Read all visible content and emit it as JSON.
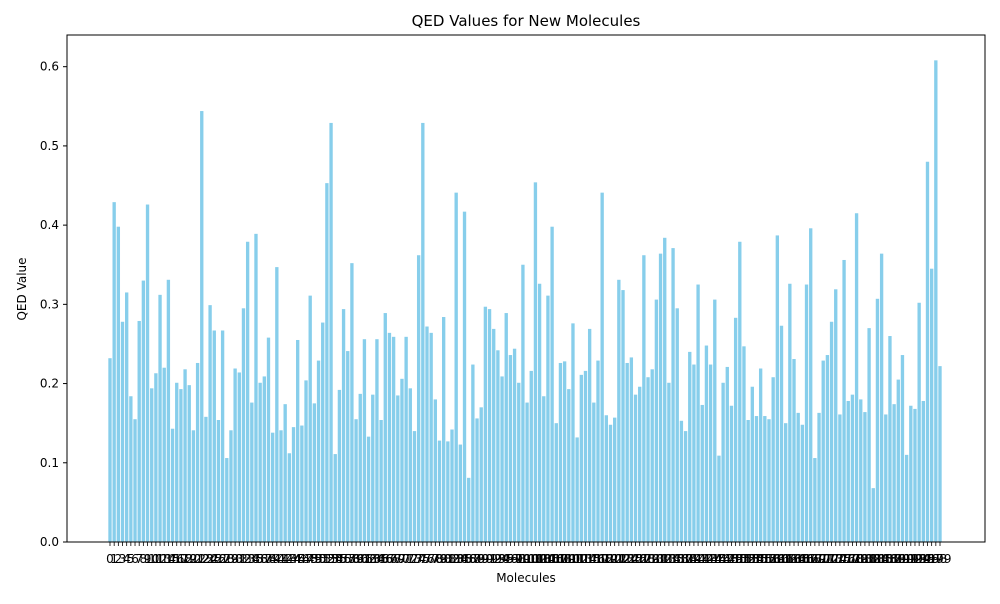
{
  "chart_data": {
    "type": "bar",
    "title": "QED Values for New Molecules",
    "xlabel": "Molecules",
    "ylabel": "QED Value",
    "ylim": [
      0,
      0.64
    ],
    "yticks": [
      0.0,
      0.1,
      0.2,
      0.3,
      0.4,
      0.5,
      0.6
    ],
    "ytick_labels": [
      "0.0",
      "0.1",
      "0.2",
      "0.3",
      "0.4",
      "0.5",
      "0.6"
    ],
    "bar_color": "#87ceeb",
    "grid": false,
    "categories": [
      0,
      1,
      2,
      3,
      4,
      5,
      6,
      7,
      8,
      9,
      10,
      11,
      12,
      13,
      14,
      15,
      16,
      17,
      18,
      19,
      20,
      21,
      22,
      23,
      24,
      25,
      26,
      27,
      28,
      29,
      30,
      31,
      32,
      33,
      34,
      35,
      36,
      37,
      38,
      39,
      40,
      41,
      42,
      43,
      44,
      45,
      46,
      47,
      48,
      49,
      50,
      51,
      52,
      53,
      54,
      55,
      56,
      57,
      58,
      59,
      60,
      61,
      62,
      63,
      64,
      65,
      66,
      67,
      68,
      69,
      70,
      71,
      72,
      73,
      74,
      75,
      76,
      77,
      78,
      79,
      80,
      81,
      82,
      83,
      84,
      85,
      86,
      87,
      88,
      89,
      90,
      91,
      92,
      93,
      94,
      95,
      96,
      97,
      98,
      99,
      100,
      101,
      102,
      103,
      104,
      105,
      106,
      107,
      108,
      109,
      110,
      111,
      112,
      113,
      114,
      115,
      116,
      117,
      118,
      119,
      120,
      121,
      122,
      123,
      124,
      125,
      126,
      127,
      128,
      129,
      130,
      131,
      132,
      133,
      134,
      135,
      136,
      137,
      138,
      139,
      140,
      141,
      142,
      143,
      144,
      145,
      146,
      147,
      148,
      149,
      150,
      151,
      152,
      153,
      154,
      155,
      156,
      157,
      158,
      159,
      160,
      161,
      162,
      163,
      164,
      165,
      166,
      167,
      168,
      169,
      170,
      171,
      172,
      173,
      174,
      175,
      176,
      177,
      178,
      179,
      180,
      181,
      182,
      183,
      184,
      185,
      186,
      187,
      188,
      189,
      190,
      191,
      192,
      193,
      194,
      195,
      196,
      197,
      198,
      199
    ],
    "values": [
      0.232,
      0.429,
      0.398,
      0.278,
      0.315,
      0.184,
      0.155,
      0.279,
      0.33,
      0.426,
      0.194,
      0.213,
      0.312,
      0.22,
      0.331,
      0.143,
      0.201,
      0.193,
      0.218,
      0.198,
      0.141,
      0.226,
      0.544,
      0.158,
      0.299,
      0.267,
      0.154,
      0.267,
      0.106,
      0.141,
      0.219,
      0.214,
      0.295,
      0.379,
      0.176,
      0.389,
      0.201,
      0.209,
      0.258,
      0.138,
      0.347,
      0.141,
      0.174,
      0.112,
      0.145,
      0.255,
      0.147,
      0.204,
      0.311,
      0.175,
      0.229,
      0.277,
      0.453,
      0.529,
      0.111,
      0.192,
      0.294,
      0.241,
      0.352,
      0.155,
      0.187,
      0.256,
      0.133,
      0.186,
      0.256,
      0.154,
      0.289,
      0.264,
      0.259,
      0.185,
      0.206,
      0.259,
      0.194,
      0.14,
      0.362,
      0.529,
      0.272,
      0.264,
      0.18,
      0.128,
      0.284,
      0.127,
      0.142,
      0.441,
      0.123,
      0.417,
      0.081,
      0.224,
      0.156,
      0.17,
      0.297,
      0.294,
      0.269,
      0.242,
      0.209,
      0.289,
      0.236,
      0.244,
      0.201,
      0.35,
      0.176,
      0.216,
      0.454,
      0.326,
      0.184,
      0.311,
      0.398,
      0.15,
      0.226,
      0.228,
      0.193,
      0.276,
      0.132,
      0.211,
      0.216,
      0.269,
      0.176,
      0.229,
      0.441,
      0.16,
      0.148,
      0.157,
      0.331,
      0.318,
      0.226,
      0.233,
      0.186,
      0.196,
      0.362,
      0.208,
      0.218,
      0.306,
      0.364,
      0.384,
      0.201,
      0.371,
      0.295,
      0.153,
      0.14,
      0.24,
      0.224,
      0.325,
      0.173,
      0.248,
      0.224,
      0.306,
      0.109,
      0.201,
      0.221,
      0.172,
      0.283,
      0.379,
      0.247,
      0.154,
      0.196,
      0.159,
      0.219,
      0.159,
      0.155,
      0.208,
      0.387,
      0.273,
      0.15,
      0.326,
      0.231,
      0.163,
      0.148,
      0.325,
      0.396,
      0.106,
      0.163,
      0.229,
      0.236,
      0.278,
      0.319,
      0.161,
      0.356,
      0.178,
      0.186,
      0.415,
      0.18,
      0.164,
      0.27,
      0.068,
      0.307,
      0.364,
      0.161,
      0.26,
      0.174,
      0.205,
      0.236,
      0.11,
      0.172,
      0.168,
      0.302,
      0.178,
      0.48,
      0.345,
      0.608,
      0.222
    ]
  }
}
